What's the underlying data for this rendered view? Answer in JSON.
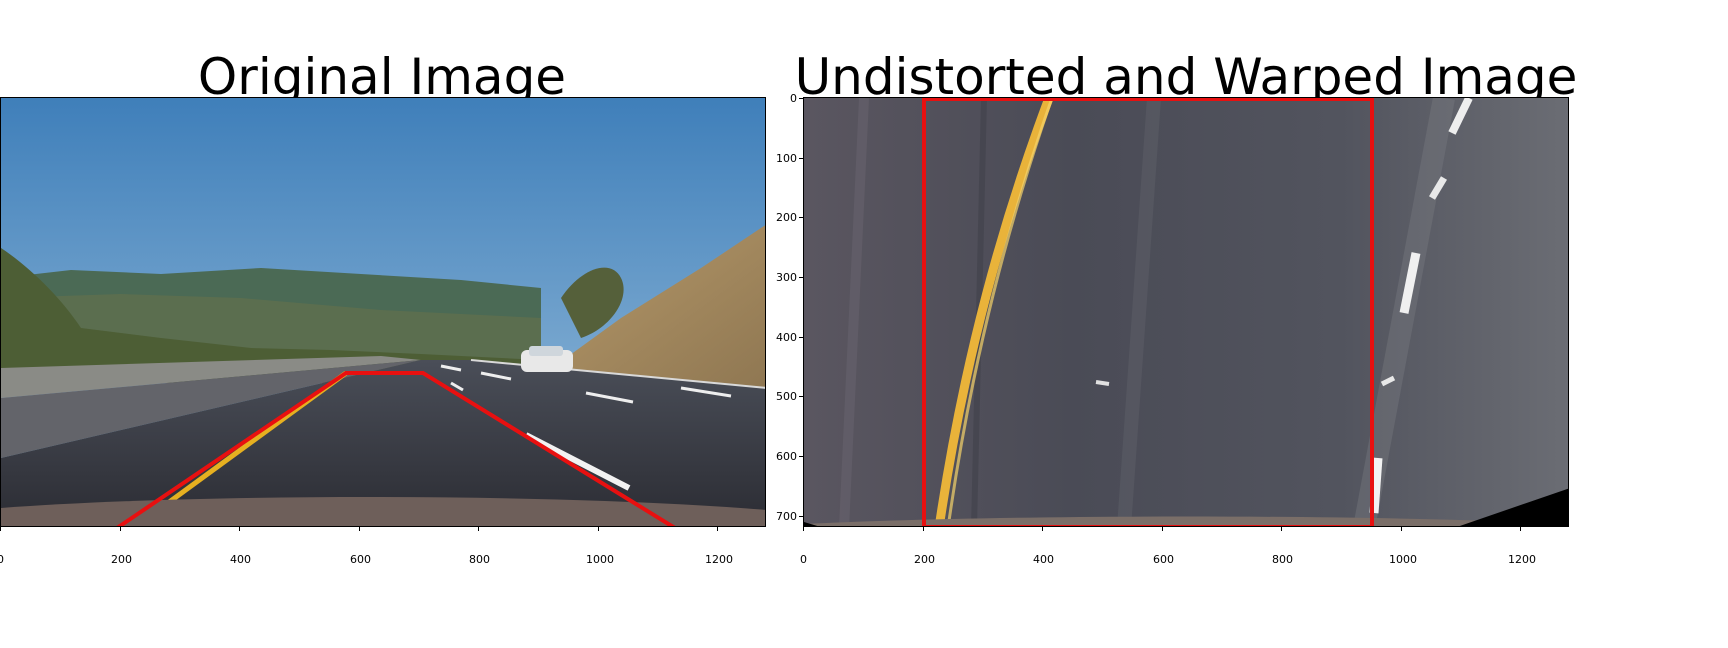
{
  "panels": [
    {
      "title": "Original Image",
      "x_ticks": [
        "0",
        "200",
        "400",
        "600",
        "800",
        "1000",
        "1200"
      ],
      "overlay_color": "#e81010"
    },
    {
      "title": "Undistorted and Warped Image",
      "x_ticks": [
        "0",
        "200",
        "400",
        "600",
        "800",
        "1000",
        "1200"
      ],
      "y_ticks": [
        "0",
        "100",
        "200",
        "300",
        "400",
        "500",
        "600",
        "700"
      ],
      "overlay_color": "#e81010"
    }
  ]
}
